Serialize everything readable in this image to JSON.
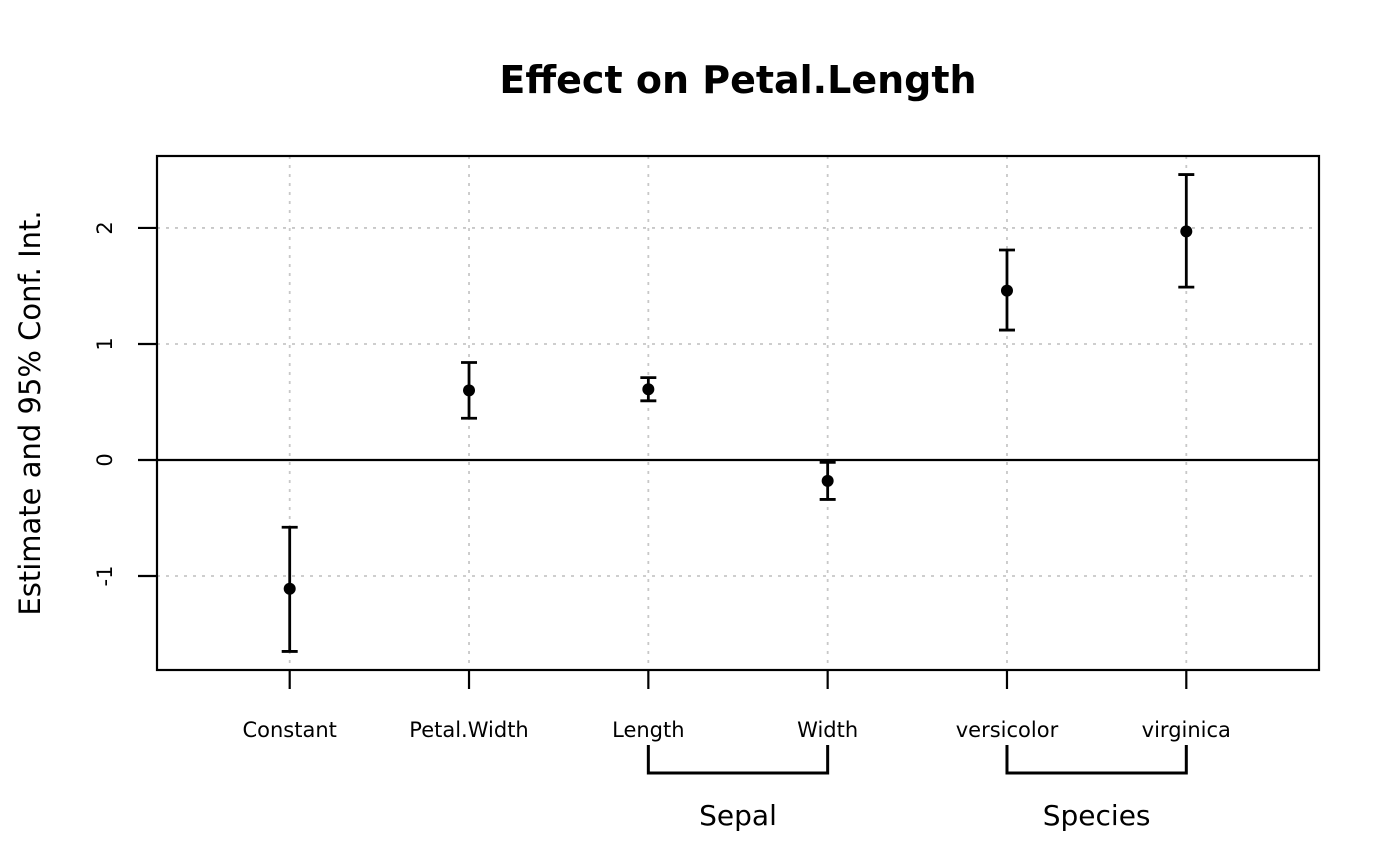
{
  "figure": {
    "background": "#ffffff"
  },
  "chart_data": {
    "type": "scatter",
    "subtype": "dot-and-whisker coefficient plot with 95% confidence intervals",
    "title": "Effect on Petal.Length",
    "xlabel": "",
    "ylabel": "Estimate and 95% Conf. Int.",
    "categories": [
      "Constant",
      "Petal.Width",
      "Length",
      "Width",
      "versicolor",
      "virginica"
    ],
    "series": [
      {
        "name": "estimate",
        "values": [
          -1.11,
          0.6,
          0.61,
          -0.18,
          1.46,
          1.97
        ]
      },
      {
        "name": "ci_lower",
        "values": [
          -1.65,
          0.36,
          0.51,
          -0.34,
          1.12,
          1.49
        ]
      },
      {
        "name": "ci_upper",
        "values": [
          -0.58,
          0.84,
          0.71,
          -0.02,
          1.81,
          2.46
        ]
      }
    ],
    "groups": [
      {
        "label": "Sepal",
        "from": "Length",
        "to": "Width"
      },
      {
        "label": "Species",
        "from": "versicolor",
        "to": "virginica"
      }
    ],
    "yticks": [
      -1,
      0,
      1,
      2
    ],
    "ylim": [
      -1.81,
      2.62
    ],
    "x_positions": [
      1,
      2,
      3,
      4,
      5,
      6
    ],
    "xlim": [
      0.26,
      6.74
    ],
    "zero_line": 0,
    "grid": "dotted",
    "legend": "none",
    "colors": {
      "point": "#000000",
      "error_bar": "#000000",
      "axis": "#000000",
      "grid": "#c8c8c8",
      "title": "#000000",
      "background": "#ffffff"
    }
  }
}
